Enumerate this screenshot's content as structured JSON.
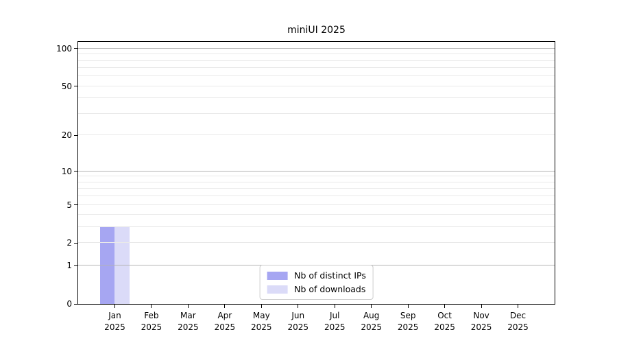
{
  "chart_data": {
    "type": "bar",
    "title": "miniUI 2025",
    "yscale": "log1p",
    "ylim": [
      0,
      113
    ],
    "yticks": [
      0,
      1,
      2,
      5,
      10,
      20,
      50,
      100
    ],
    "major_gridlines": [
      1,
      10,
      100
    ],
    "minor_gridlines": [
      2,
      3,
      4,
      5,
      6,
      7,
      8,
      9,
      20,
      30,
      40,
      50,
      60,
      70,
      80,
      90
    ],
    "categories": [
      "Jan",
      "Feb",
      "Mar",
      "Apr",
      "May",
      "Jun",
      "Jul",
      "Aug",
      "Sep",
      "Oct",
      "Nov",
      "Dec"
    ],
    "year": "2025",
    "series": [
      {
        "name": "Nb of distinct IPs",
        "color": "#a6a6f2",
        "values": [
          3,
          0,
          0,
          0,
          0,
          0,
          0,
          0,
          0,
          0,
          0,
          0
        ]
      },
      {
        "name": "Nb of downloads",
        "color": "#dbdbf8",
        "values": [
          3,
          0,
          0,
          0,
          0,
          0,
          0,
          0,
          0,
          0,
          0,
          0
        ]
      }
    ],
    "legend_position": "lower center",
    "grid": true,
    "colors": {
      "axis": "#000000",
      "major_grid": "#b3b3b3",
      "minor_grid": "#e9e9e9",
      "legend_border": "#cccccc",
      "background": "#ffffff"
    }
  }
}
